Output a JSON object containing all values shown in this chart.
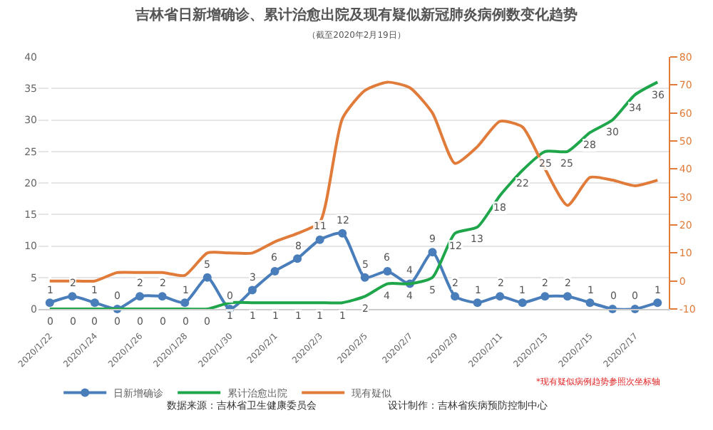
{
  "chart_data": {
    "type": "line",
    "title": "吉林省日新增确诊、累计治愈出院及现有疑似新冠肺炎病例数变化趋势",
    "subtitle": "（截至2020年2月19日）",
    "categories": [
      "2020/1/22",
      null,
      "2020/1/24",
      null,
      "2020/1/26",
      null,
      "2020/1/28",
      null,
      "2020/1/30",
      null,
      "2020/2/1",
      null,
      "2020/2/3",
      null,
      "2020/2/5",
      null,
      "2020/2/7",
      null,
      "2020/2/9",
      null,
      "2020/2/11",
      null,
      "2020/2/13",
      null,
      "2020/2/15",
      null,
      "2020/2/17",
      null
    ],
    "series": [
      {
        "name": "日新增确诊",
        "color": "#4a7ebb",
        "marker": "circle",
        "values": [
          1,
          2,
          1,
          0,
          2,
          2,
          1,
          5,
          0,
          3,
          6,
          8,
          11,
          12,
          5,
          6,
          4,
          9,
          2,
          1,
          2,
          1,
          2,
          2,
          1,
          0,
          0,
          1
        ],
        "value_labels": [
          "1",
          "2",
          "1",
          "0",
          "2",
          "2",
          "1",
          "5",
          "0",
          "3",
          "6",
          "8",
          "11",
          "12",
          "5",
          "6",
          "4",
          "9",
          "2",
          "1",
          "2",
          "1",
          "2",
          "2",
          "1",
          "0",
          "0",
          "1"
        ]
      },
      {
        "name": "累计治愈出院",
        "color": "#1fa64a",
        "marker": "none",
        "values": [
          0,
          0,
          0,
          0,
          0,
          0,
          0,
          0,
          1,
          1,
          1,
          1,
          1,
          1,
          2,
          4,
          4,
          5,
          12,
          13,
          18,
          22,
          25,
          25,
          28,
          30,
          34,
          36
        ],
        "value_labels": [
          "0",
          "0",
          "0",
          "0",
          "0",
          "0",
          "0",
          "0",
          "1",
          "1",
          "1",
          "1",
          "1",
          "1",
          "2",
          "4",
          "4",
          "5",
          "12",
          "13",
          "18",
          "22",
          "25",
          "25",
          "28",
          "30",
          "34",
          "36"
        ]
      },
      {
        "name": "现有疑似",
        "color": "#e07b39",
        "marker": "none",
        "axis": "y2",
        "values": [
          0,
          0,
          0,
          3,
          3,
          3,
          2,
          10,
          10,
          10,
          14,
          17,
          21,
          58,
          68,
          71,
          69,
          60,
          42,
          48,
          57,
          55,
          40,
          27,
          37,
          36,
          34,
          36
        ]
      }
    ],
    "ylim": [
      0,
      40
    ],
    "yticks": [
      0,
      5,
      10,
      15,
      20,
      25,
      30,
      35,
      40
    ],
    "y2lim": [
      -10,
      80
    ],
    "y2ticks": [
      -10,
      0,
      10,
      20,
      30,
      40,
      50,
      60,
      70,
      80
    ],
    "grid": "y",
    "legend": "bottom",
    "line_style": "solid",
    "annotations": [
      "*现有疑似病例趋势参照次坐标轴",
      "数据来源：吉林省卫生健康委员会",
      "设计制作：吉林省疾病预防控制中心"
    ]
  }
}
